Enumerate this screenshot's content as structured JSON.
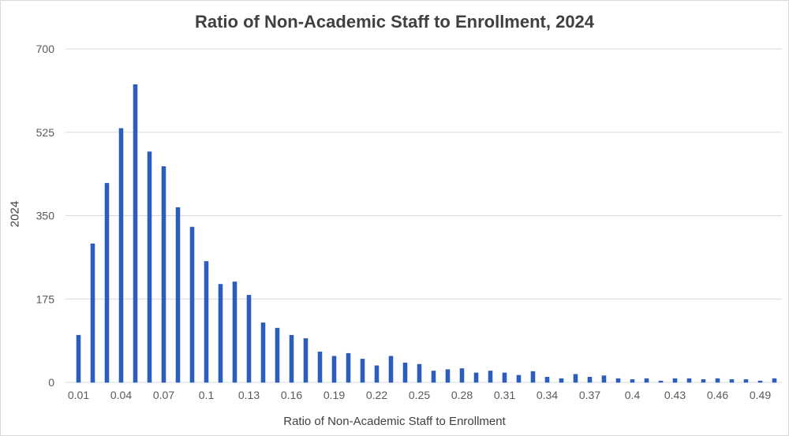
{
  "chart_data": {
    "type": "bar",
    "title": "Ratio of Non-Academic Staff to Enrollment, 2024",
    "xlabel": "Ratio of Non-Academic Staff to Enrollment",
    "ylabel": "2024",
    "ylim": [
      0,
      700
    ],
    "yticks": [
      0,
      175,
      350,
      525,
      700
    ],
    "grid": true,
    "bar_color": "#2b5fbf",
    "categories": [
      "0.01",
      "0.02",
      "0.03",
      "0.04",
      "0.05",
      "0.06",
      "0.07",
      "0.08",
      "0.09",
      "0.1",
      "0.11",
      "0.12",
      "0.13",
      "0.14",
      "0.15",
      "0.16",
      "0.17",
      "0.18",
      "0.19",
      "0.2",
      "0.21",
      "0.22",
      "0.23",
      "0.24",
      "0.25",
      "0.26",
      "0.27",
      "0.28",
      "0.29",
      "0.3",
      "0.31",
      "0.32",
      "0.33",
      "0.34",
      "0.35",
      "0.36",
      "0.37",
      "0.38",
      "0.39",
      "0.4",
      "0.41",
      "0.42",
      "0.43",
      "0.44",
      "0.45",
      "0.46",
      "0.47",
      "0.48",
      "0.49",
      "0.5"
    ],
    "visible_tick_labels": [
      "0.01",
      "0.04",
      "0.07",
      "0.1",
      "0.13",
      "0.16",
      "0.19",
      "0.22",
      "0.25",
      "0.28",
      "0.31",
      "0.34",
      "0.37",
      "0.4",
      "0.43",
      "0.46",
      "0.49"
    ],
    "values": [
      99,
      291,
      418,
      533,
      625,
      484,
      453,
      367,
      326,
      254,
      206,
      211,
      183,
      125,
      114,
      99,
      92,
      64,
      55,
      61,
      49,
      35,
      55,
      41,
      38,
      24,
      27,
      29,
      20,
      24,
      20,
      15,
      23,
      11,
      8,
      17,
      11,
      14,
      8,
      6,
      8,
      3,
      8,
      8,
      6,
      8,
      6,
      6,
      3,
      8
    ]
  }
}
